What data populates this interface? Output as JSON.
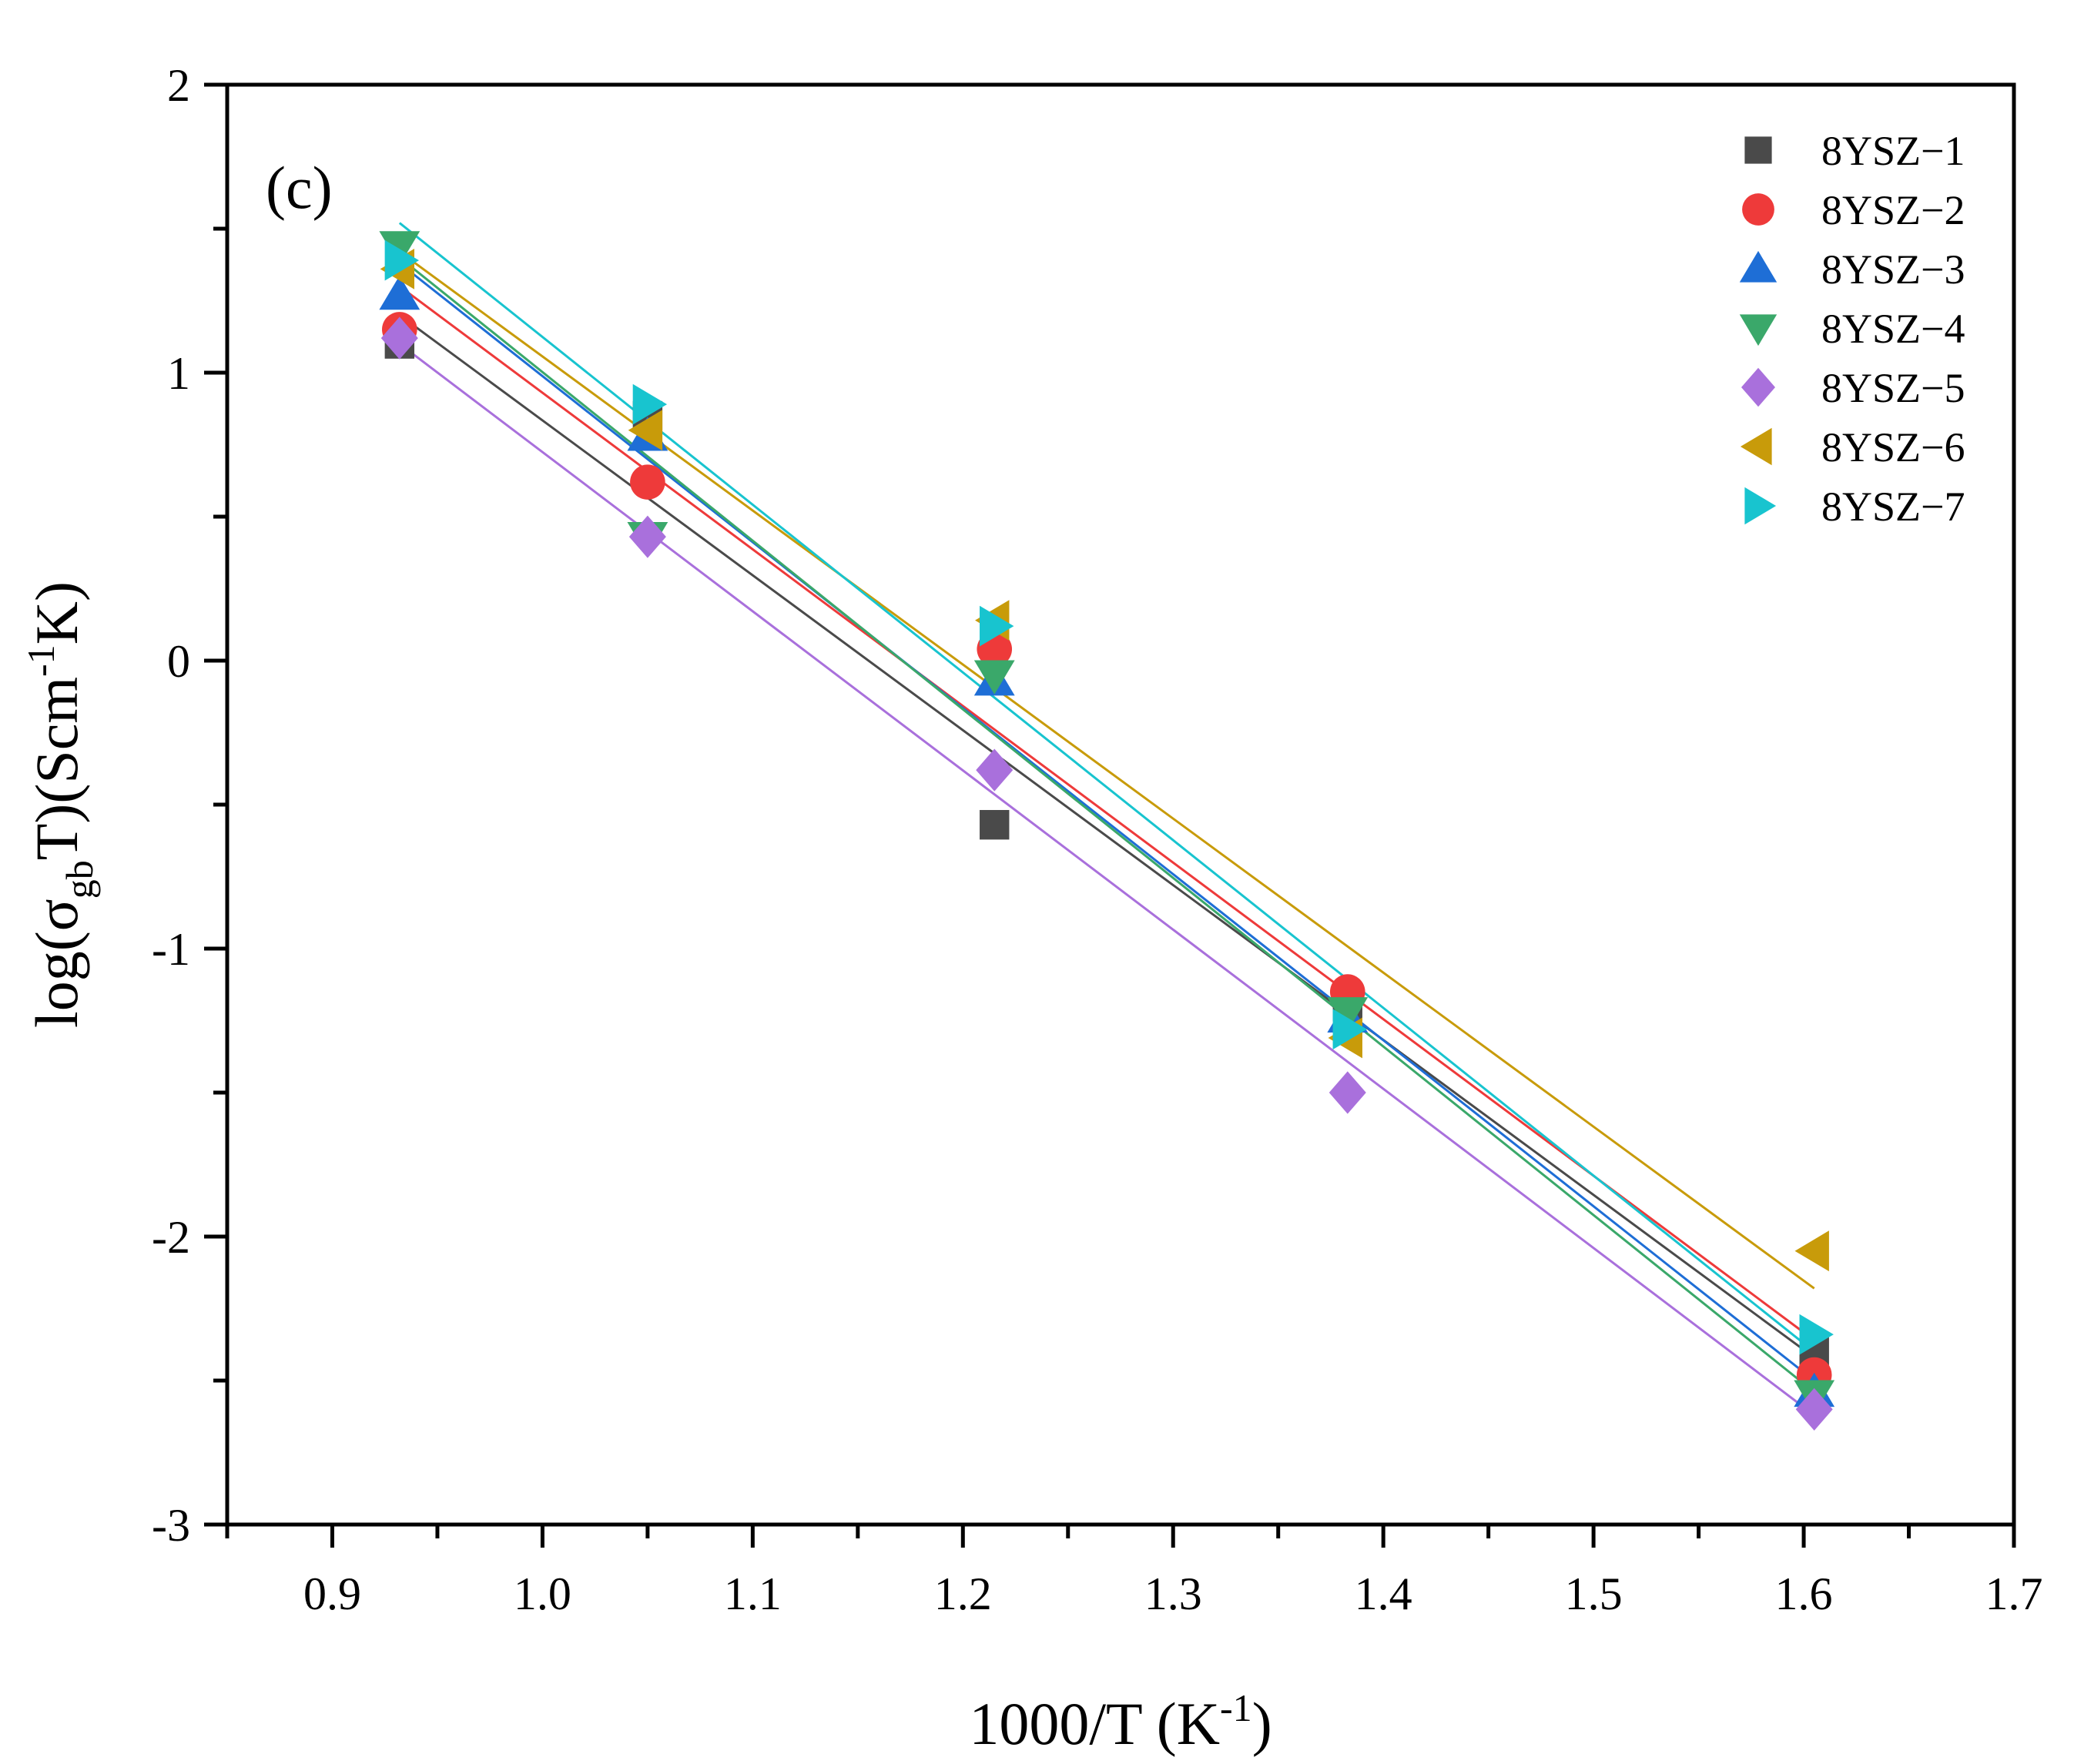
{
  "chart_data": {
    "type": "scatter",
    "panel_label": "(c)",
    "xlabel": {
      "main": "1000/T (K",
      "sup": "-1",
      "close": ")"
    },
    "ylabel": {
      "p1": "log(σ",
      "sub": "gb",
      "p2": "T)(Scm",
      "sup": "-1",
      "p3": "K)"
    },
    "xlim": [
      0.85,
      1.7
    ],
    "ylim": [
      -3,
      2
    ],
    "x_ticks": [
      0.9,
      1.0,
      1.1,
      1.2,
      1.3,
      1.4,
      1.5,
      1.6,
      1.7
    ],
    "x_tick_labels": [
      "0.9",
      "1.0",
      "1.1",
      "1.2",
      "1.3",
      "1.4",
      "1.5",
      "1.6",
      "1.7"
    ],
    "y_ticks": [
      -3,
      -2,
      -1,
      0,
      1,
      2
    ],
    "y_tick_labels": [
      "-3",
      "-2",
      "-1",
      "0",
      "1",
      "2"
    ],
    "grid": false,
    "legend_position": "top-right",
    "fit_lines": true,
    "series": [
      {
        "name": "8YSZ−1",
        "marker": "square",
        "color": "#4a4a4a",
        "points": [
          [
            0.932,
            1.1
          ],
          [
            1.05,
            0.85
          ],
          [
            1.215,
            -0.57
          ],
          [
            1.383,
            -1.2
          ],
          [
            1.605,
            -2.4
          ]
        ],
        "fit": [
          [
            0.932,
            1.2
          ],
          [
            1.605,
            -2.42
          ]
        ]
      },
      {
        "name": "8YSZ−2",
        "marker": "circle",
        "color": "#ee3a3a",
        "points": [
          [
            0.932,
            1.15
          ],
          [
            1.05,
            0.62
          ],
          [
            1.215,
            0.04
          ],
          [
            1.383,
            -1.15
          ],
          [
            1.605,
            -2.48
          ]
        ],
        "fit": [
          [
            0.932,
            1.3
          ],
          [
            1.605,
            -2.36
          ]
        ]
      },
      {
        "name": "8YSZ−3",
        "marker": "triangle-up",
        "color": "#1e6ed6",
        "points": [
          [
            0.932,
            1.27
          ],
          [
            1.05,
            0.78
          ],
          [
            1.215,
            -0.07
          ],
          [
            1.383,
            -1.24
          ],
          [
            1.605,
            -2.54
          ]
        ],
        "fit": [
          [
            0.932,
            1.38
          ],
          [
            1.605,
            -2.5
          ]
        ]
      },
      {
        "name": "8YSZ−4",
        "marker": "triangle-down",
        "color": "#3aa86a",
        "points": [
          [
            0.932,
            1.44
          ],
          [
            1.05,
            0.43
          ],
          [
            1.215,
            -0.05
          ],
          [
            1.383,
            -1.22
          ],
          [
            1.605,
            -2.55
          ]
        ],
        "fit": [
          [
            0.932,
            1.4
          ],
          [
            1.605,
            -2.54
          ]
        ]
      },
      {
        "name": "8YSZ−5",
        "marker": "diamond",
        "color": "#a970dc",
        "points": [
          [
            0.932,
            1.12
          ],
          [
            1.05,
            0.43
          ],
          [
            1.215,
            -0.38
          ],
          [
            1.383,
            -1.5
          ],
          [
            1.605,
            -2.6
          ]
        ],
        "fit": [
          [
            0.932,
            1.1
          ],
          [
            1.605,
            -2.62
          ]
        ]
      },
      {
        "name": "8YSZ−6",
        "marker": "triangle-left",
        "color": "#c89b0a",
        "points": [
          [
            0.932,
            1.36
          ],
          [
            1.05,
            0.8
          ],
          [
            1.215,
            0.14
          ],
          [
            1.383,
            -1.31
          ],
          [
            1.605,
            -2.05
          ]
        ],
        "fit": [
          [
            0.932,
            1.42
          ],
          [
            1.605,
            -2.18
          ]
        ]
      },
      {
        "name": "8YSZ−7",
        "marker": "triangle-right",
        "color": "#18c4cf",
        "points": [
          [
            0.932,
            1.39
          ],
          [
            1.05,
            0.89
          ],
          [
            1.215,
            0.12
          ],
          [
            1.383,
            -1.28
          ],
          [
            1.605,
            -2.34
          ]
        ],
        "fit": [
          [
            0.932,
            1.52
          ],
          [
            1.605,
            -2.4
          ]
        ]
      }
    ]
  }
}
